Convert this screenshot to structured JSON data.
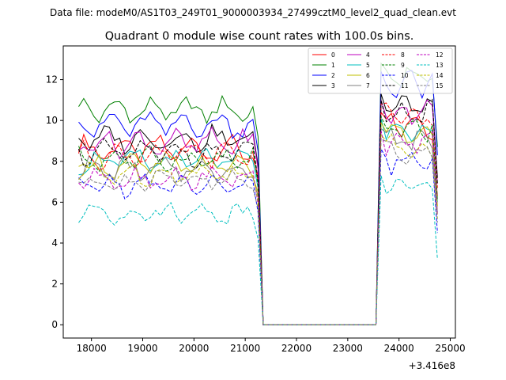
{
  "chart_data": {
    "type": "line",
    "suptitle": "Data file: modeM0/AS1T03_249T01_9000003934_27499cztM0_level2_quad_clean.evt",
    "title": "Quadrant 0 module wise count rates with 100.0s bins.",
    "xlabel": "",
    "ylabel": "",
    "x_offset_label": "+3.416e8",
    "xlim": [
      17450,
      25100
    ],
    "ylim": [
      -0.65,
      13.65
    ],
    "xticks": [
      18000,
      19000,
      20000,
      21000,
      22000,
      23000,
      24000,
      25000
    ],
    "xtick_labels": [
      "18000",
      "19000",
      "20000",
      "21000",
      "22000",
      "23000",
      "24000",
      "25000"
    ],
    "yticks": [
      0,
      2,
      4,
      6,
      8,
      10,
      12
    ],
    "ytick_labels": [
      "0",
      "2",
      "4",
      "6",
      "8",
      "10",
      "12"
    ],
    "legend_placement": "upper-right",
    "legend_columns": 4,
    "time_bins": {
      "segment1_start": 17750,
      "segment1_count": 36,
      "gap_start": 21350,
      "gap_end": 23550,
      "segment2_start": 23650,
      "segment2_count": 12,
      "step": 100
    },
    "series": [
      {
        "name": "0",
        "color": "#ff0000",
        "dash": "solid",
        "level1": 8.6,
        "amp1": 0.45,
        "level2": 9.8,
        "amp2": 0.55,
        "phase": 0.3
      },
      {
        "name": "1",
        "color": "#008000",
        "dash": "solid",
        "level1": 10.5,
        "amp1": 0.45,
        "level2": 12.2,
        "amp2": 0.35,
        "phase": 1.1
      },
      {
        "name": "2",
        "color": "#0000ff",
        "dash": "solid",
        "level1": 9.8,
        "amp1": 0.5,
        "level2": 11.8,
        "amp2": 0.5,
        "phase": 2.0
      },
      {
        "name": "3",
        "color": "#000000",
        "dash": "solid",
        "level1": 9.1,
        "amp1": 0.45,
        "level2": 10.7,
        "amp2": 0.35,
        "phase": 2.7
      },
      {
        "name": "4",
        "color": "#bf00bf",
        "dash": "solid",
        "level1": 8.9,
        "amp1": 0.45,
        "level2": 10.4,
        "amp2": 0.4,
        "phase": 3.5
      },
      {
        "name": "5",
        "color": "#00bfbf",
        "dash": "solid",
        "level1": 8.0,
        "amp1": 0.4,
        "level2": 9.5,
        "amp2": 0.4,
        "phase": 4.2
      },
      {
        "name": "6",
        "color": "#bfbf00",
        "dash": "solid",
        "level1": 7.8,
        "amp1": 0.4,
        "level2": 9.3,
        "amp2": 0.4,
        "phase": 5.0
      },
      {
        "name": "7",
        "color": "#808080",
        "dash": "solid",
        "level1": 7.6,
        "amp1": 0.4,
        "level2": 9.0,
        "amp2": 0.4,
        "phase": 5.7
      },
      {
        "name": "8",
        "color": "#ff0000",
        "dash": "dashed",
        "level1": 8.3,
        "amp1": 0.4,
        "level2": 10.2,
        "amp2": 0.4,
        "phase": 0.8
      },
      {
        "name": "9",
        "color": "#008000",
        "dash": "dashed",
        "level1": 8.1,
        "amp1": 0.35,
        "level2": 9.6,
        "amp2": 0.4,
        "phase": 1.6
      },
      {
        "name": "10",
        "color": "#0000ff",
        "dash": "dashed",
        "level1": 6.8,
        "amp1": 0.35,
        "level2": 8.0,
        "amp2": 0.4,
        "phase": 2.4
      },
      {
        "name": "11",
        "color": "#000000",
        "dash": "dashed",
        "level1": 8.4,
        "amp1": 0.4,
        "level2": 10.4,
        "amp2": 0.35,
        "phase": 3.1
      },
      {
        "name": "12",
        "color": "#bf00bf",
        "dash": "dashed",
        "level1": 7.2,
        "amp1": 0.35,
        "level2": 8.9,
        "amp2": 0.4,
        "phase": 3.9
      },
      {
        "name": "13",
        "color": "#00bfbf",
        "dash": "dashed",
        "level1": 5.5,
        "amp1": 0.35,
        "level2": 6.7,
        "amp2": 0.35,
        "phase": 4.6
      },
      {
        "name": "14",
        "color": "#bfbf00",
        "dash": "dashed",
        "level1": 7.4,
        "amp1": 0.35,
        "level2": 8.7,
        "amp2": 0.4,
        "phase": 5.3
      },
      {
        "name": "15",
        "color": "#808080",
        "dash": "dashed",
        "level1": 7.0,
        "amp1": 0.35,
        "level2": 8.5,
        "amp2": 0.4,
        "phase": 6.0
      }
    ]
  }
}
